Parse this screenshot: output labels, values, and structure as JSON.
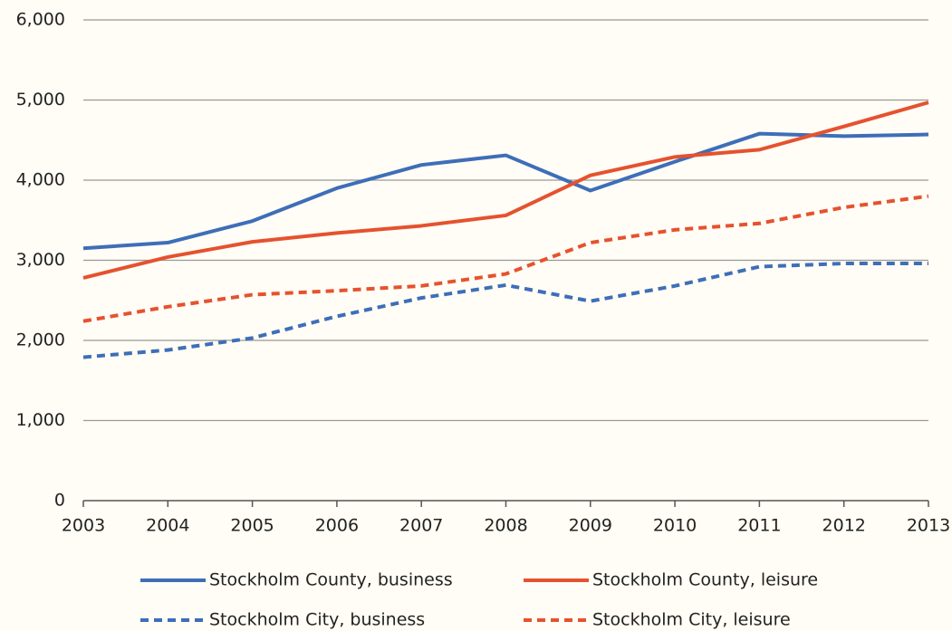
{
  "chart_data": {
    "type": "line",
    "x": [
      2003,
      2004,
      2005,
      2006,
      2007,
      2008,
      2009,
      2010,
      2011,
      2012,
      2013
    ],
    "xlim": [
      2003,
      2013
    ],
    "xticks": [
      2003,
      2004,
      2005,
      2006,
      2007,
      2008,
      2009,
      2010,
      2011,
      2012,
      2013
    ],
    "ylim": [
      0,
      6000
    ],
    "yticks": [
      0,
      {
        "value": 1000,
        "label": "1,000"
      },
      {
        "value": 2000,
        "label": "2,000"
      },
      {
        "value": 3000,
        "label": "3,000"
      },
      {
        "value": 4000,
        "label": "4,000"
      },
      {
        "value": 5000,
        "label": "5,000"
      },
      {
        "value": 6000,
        "label": "6,000"
      }
    ],
    "grid": true,
    "series": [
      {
        "name": "Stockholm County, business",
        "color": "#3e6eb8",
        "dashed": false,
        "values": [
          3150,
          3220,
          3490,
          3900,
          4190,
          4310,
          3870,
          4230,
          4580,
          4550,
          4570
        ]
      },
      {
        "name": "Stockholm County, leisure",
        "color": "#e5522f",
        "dashed": false,
        "values": [
          2780,
          3040,
          3230,
          3340,
          3430,
          3560,
          4060,
          4290,
          4380,
          4670,
          4970
        ]
      },
      {
        "name": "Stockholm City, business",
        "color": "#3e6eb8",
        "dashed": true,
        "values": [
          1790,
          1880,
          2030,
          2300,
          2530,
          2690,
          2490,
          2680,
          2920,
          2960,
          2960
        ]
      },
      {
        "name": "Stockholm City, leisure",
        "color": "#e5522f",
        "dashed": true,
        "values": [
          2240,
          2420,
          2570,
          2620,
          2680,
          2830,
          3220,
          3380,
          3460,
          3660,
          3800
        ]
      }
    ]
  }
}
